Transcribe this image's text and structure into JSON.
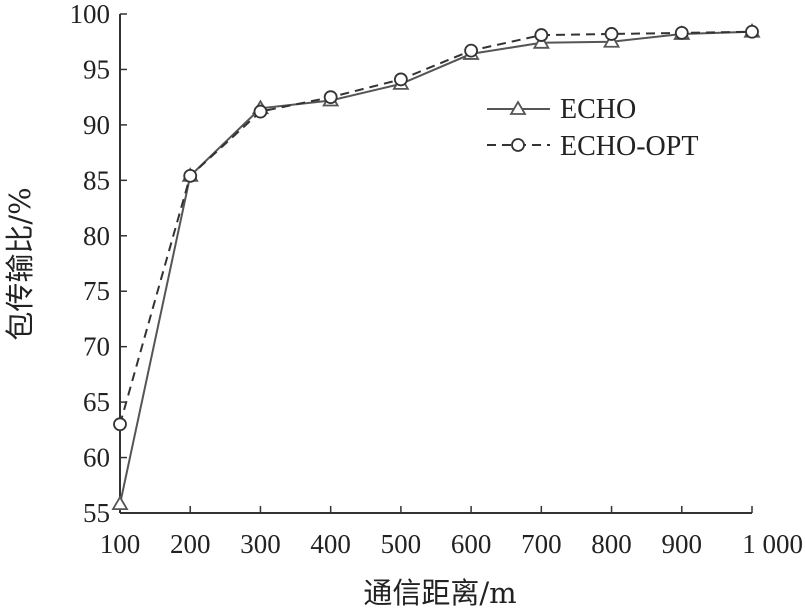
{
  "chart_data": {
    "type": "line",
    "xlabel": "通信距离/m",
    "ylabel": "包传输比/%",
    "x": [
      100,
      200,
      300,
      400,
      500,
      600,
      700,
      800,
      900,
      1000
    ],
    "x_tick_labels": [
      "100",
      "200",
      "300",
      "400",
      "500",
      "600",
      "700",
      "800",
      "900",
      "1 000"
    ],
    "y_ticks": [
      55,
      60,
      65,
      70,
      75,
      80,
      85,
      90,
      95,
      100
    ],
    "xlim": [
      100,
      1000
    ],
    "ylim": [
      55,
      100
    ],
    "grid": false,
    "legend_position": "top-right",
    "series": [
      {
        "name": "ECHO",
        "marker": "triangle",
        "line_style": "solid",
        "color": "#555555",
        "values": [
          55.8,
          85.4,
          91.5,
          92.2,
          93.7,
          96.4,
          97.4,
          97.5,
          98.2,
          98.4
        ]
      },
      {
        "name": "ECHO-OPT",
        "marker": "circle",
        "line_style": "dashed",
        "color": "#333333",
        "values": [
          63.0,
          85.4,
          91.2,
          92.5,
          94.1,
          96.7,
          98.1,
          98.2,
          98.3,
          98.4
        ]
      }
    ]
  }
}
